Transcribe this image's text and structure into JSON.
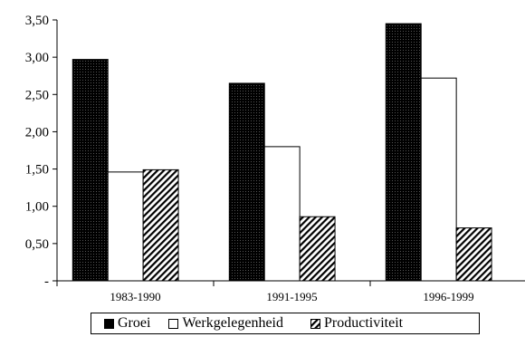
{
  "chart_data": {
    "type": "bar",
    "categories": [
      "1983-1990",
      "1991-1995",
      "1996-1999"
    ],
    "series": [
      {
        "name": "Groei",
        "values": [
          2.97,
          2.65,
          3.45
        ],
        "fill": "black-dotted"
      },
      {
        "name": "Werkgelegenheid",
        "values": [
          1.46,
          1.8,
          2.72
        ],
        "fill": "white"
      },
      {
        "name": "Productiviteit",
        "values": [
          1.49,
          0.86,
          0.71
        ],
        "fill": "diagonal-hatch"
      }
    ],
    "ylim": [
      0,
      3.5
    ],
    "yticks": [
      "-",
      "0,50",
      "1,00",
      "1,50",
      "2,00",
      "2,50",
      "3,00",
      "3,50"
    ],
    "ytick_values": [
      0,
      0.5,
      1.0,
      1.5,
      2.0,
      2.5,
      3.0,
      3.5
    ],
    "title": "",
    "xlabel": "",
    "ylabel": "",
    "grid": false,
    "legend_position": "bottom"
  }
}
